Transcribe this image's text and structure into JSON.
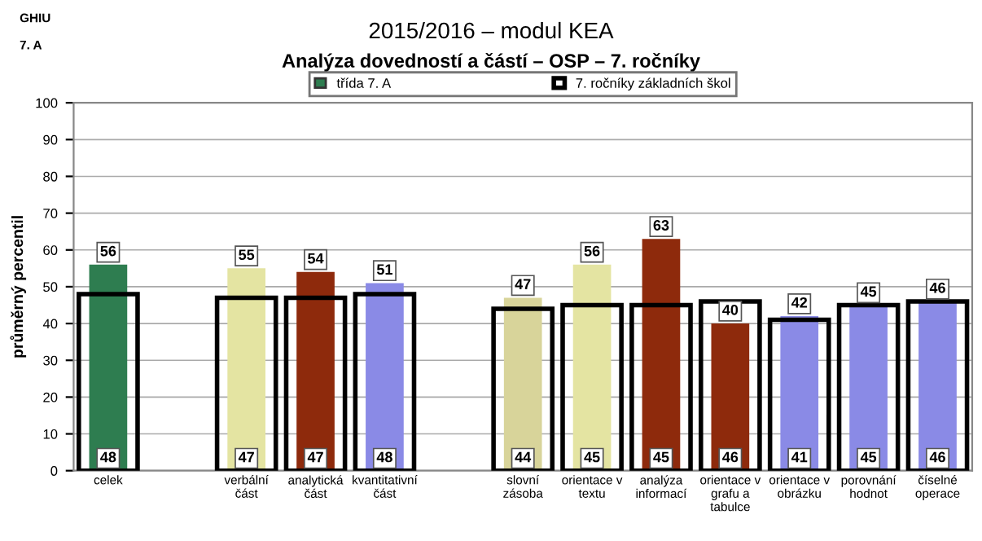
{
  "chart_data": {
    "type": "bar",
    "title": "2015/2016 – modul KEA",
    "subtitle": "Analýza dovedností a částí – OSP – 7. ročníky",
    "ylabel": "průměrný percentil",
    "annotations": [
      "GHIU",
      "7. A"
    ],
    "categories": [
      "celek",
      null,
      "verbální část",
      "analytická část",
      "kvantitativní část",
      null,
      "slovní zásoba",
      "orientace v textu",
      "analýza informací",
      "orientace v grafu a tabulce",
      "orientace v obrázku",
      "porovnání hodnot",
      "číselné operace"
    ],
    "series": [
      {
        "name": "třída 7. A",
        "colors": [
          "#2e7d50",
          null,
          "#e4e4a2",
          "#8e2a0c",
          "#8a8ae6",
          null,
          "#d8d49a",
          "#e4e4a2",
          "#8e2a0c",
          "#8e2a0c",
          "#8a8ae6",
          "#8a8ae6",
          "#8a8ae6"
        ],
        "values": [
          56,
          null,
          55,
          54,
          51,
          null,
          47,
          56,
          63,
          40,
          42,
          45,
          46
        ]
      },
      {
        "name": "7. ročníky základních škol",
        "color": "#000000",
        "values": [
          48,
          null,
          47,
          47,
          48,
          null,
          44,
          45,
          45,
          46,
          41,
          45,
          46
        ],
        "value_labels": [
          "48",
          null,
          "47",
          "47",
          "48",
          null,
          "44",
          "45",
          "45",
          "46",
          "41",
          "45",
          "46"
        ]
      }
    ],
    "ylim": [
      0,
      100
    ],
    "yticks": [
      0,
      10,
      20,
      30,
      40,
      50,
      60,
      70,
      80,
      90,
      100
    ],
    "grid": "y",
    "legend": "top",
    "data_labels": true
  }
}
